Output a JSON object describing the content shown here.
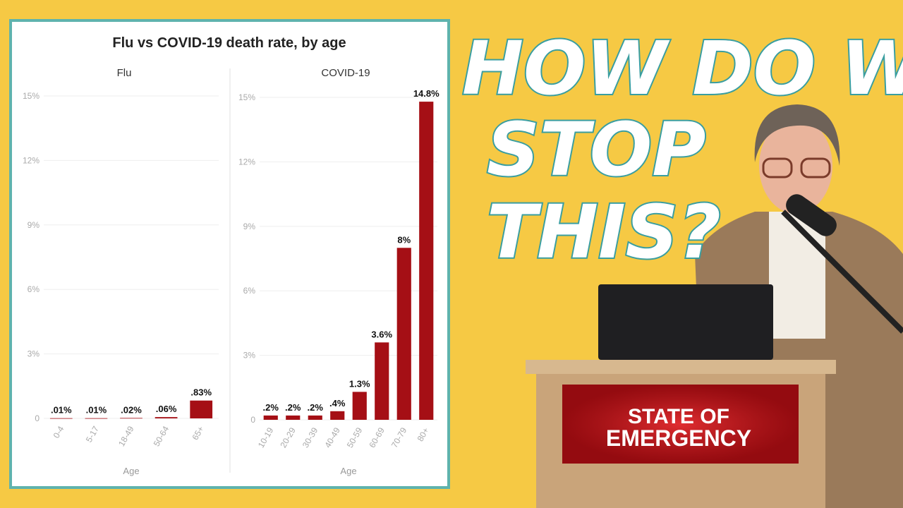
{
  "figure_title": "Flu vs COVID-19 death rate, by age",
  "headline": [
    "HOW DO WE",
    "STOP",
    "THIS?"
  ],
  "banner": [
    "STATE OF",
    "EMERGENCY"
  ],
  "chart_data": [
    {
      "type": "bar",
      "title": "Flu",
      "x_label": "Age",
      "categories": [
        "0-4",
        "5-17",
        "18-49",
        "50-64",
        "65+"
      ],
      "values": [
        0.01,
        0.01,
        0.02,
        0.06,
        0.83
      ],
      "value_labels": [
        ".01%",
        ".01%",
        ".02%",
        ".06%",
        ".83%"
      ],
      "color": "#a50f15",
      "ylim": [
        0,
        15
      ],
      "yticks": [
        0,
        {
          "value": 3,
          "label": "3%"
        },
        {
          "value": 6,
          "label": "6%"
        },
        {
          "value": 9,
          "label": "9%"
        },
        {
          "value": 12,
          "label": "12%"
        },
        {
          "value": 15,
          "label": "15%"
        }
      ],
      "grid": true
    },
    {
      "type": "bar",
      "title": "COVID-19",
      "x_label": "Age",
      "categories": [
        "10-19",
        "20-29",
        "30-39",
        "40-49",
        "50-59",
        "60-69",
        "70-79",
        "80+"
      ],
      "values": [
        0.2,
        0.2,
        0.2,
        0.4,
        1.3,
        3.6,
        8,
        14.8
      ],
      "value_labels": [
        ".2%",
        ".2%",
        ".2%",
        ".4%",
        "1.3%",
        "3.6%",
        "8%",
        "14.8%"
      ],
      "color": "#a50f15",
      "ylim": [
        0,
        15
      ],
      "yticks": [
        0,
        {
          "value": 3,
          "label": "3%"
        },
        {
          "value": 6,
          "label": "6%"
        },
        {
          "value": 9,
          "label": "9%"
        },
        {
          "value": 12,
          "label": "12%"
        },
        {
          "value": 15,
          "label": "15%"
        }
      ],
      "grid": true
    }
  ]
}
